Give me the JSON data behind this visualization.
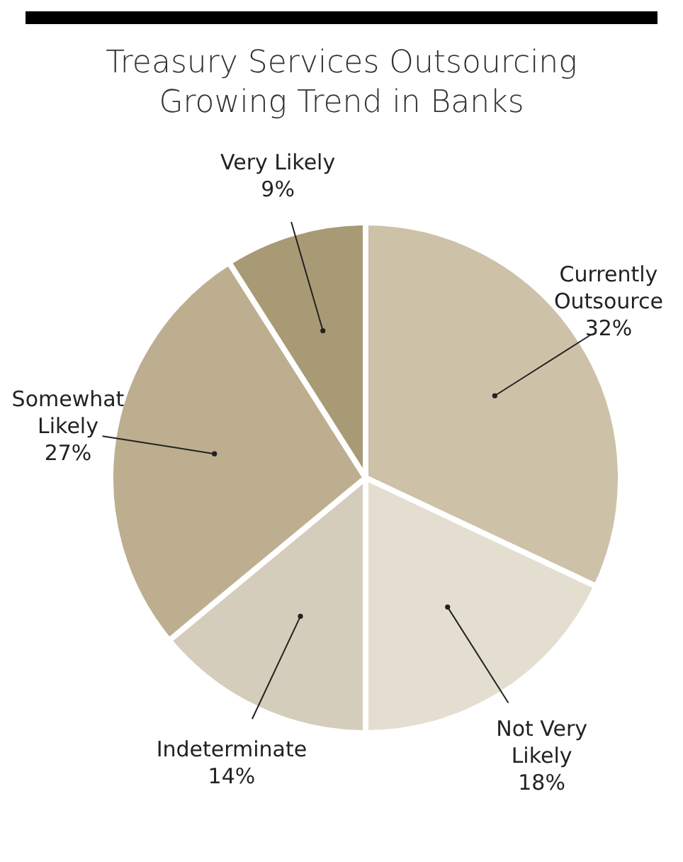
{
  "chart_data": {
    "type": "pie",
    "title": "Treasury Services Outsourcing\nGrowing Trend in Banks",
    "categories": [
      "Currently Outsource",
      "Not Very Likely",
      "Indeterminate",
      "Somewhat Likely",
      "Very Likely"
    ],
    "values": [
      32,
      18,
      14,
      27,
      9
    ],
    "value_labels": [
      "32%",
      "18%",
      "14%",
      "27%",
      "9%"
    ],
    "colors": [
      "#cdc1a8",
      "#e4ded1",
      "#d5cdbb",
      "#bcae8f",
      "#a89a74"
    ],
    "legend": false
  }
}
